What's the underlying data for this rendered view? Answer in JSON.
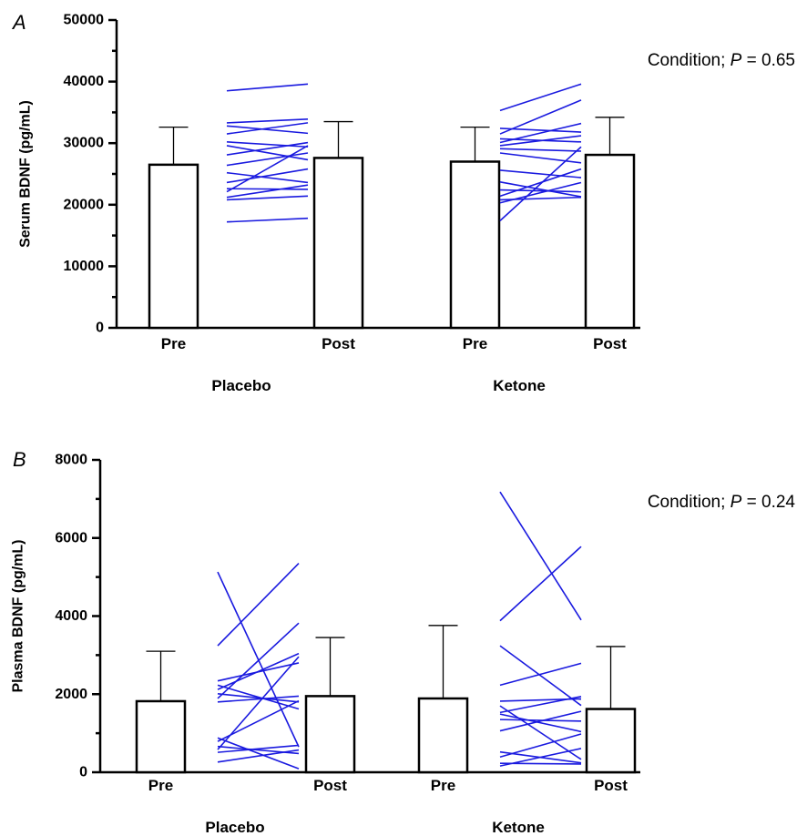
{
  "chart_data": [
    {
      "type": "bar",
      "panel": "A",
      "ylabel": "Serum BDNF (pg/mL)",
      "ylim": [
        0,
        50000
      ],
      "yticks": [
        0,
        10000,
        20000,
        30000,
        40000,
        50000
      ],
      "categories": [
        "Pre",
        "Post",
        "Pre",
        "Post"
      ],
      "groups": [
        "Placebo",
        "Ketone"
      ],
      "values": [
        26500,
        27600,
        27000,
        28100
      ],
      "errors_upper": [
        32600,
        33500,
        32600,
        34200
      ],
      "annotation": {
        "prefix": "Condition; ",
        "p": "P",
        "suffix": " = 0.65"
      },
      "individual_lines": [
        {
          "group": "Placebo",
          "pairs": [
            [
              38500,
              39600
            ],
            [
              33300,
              33900
            ],
            [
              32800,
              31600
            ],
            [
              31500,
              33300
            ],
            [
              30200,
              29400
            ],
            [
              29600,
              27300
            ],
            [
              28100,
              30100
            ],
            [
              26400,
              28400
            ],
            [
              25200,
              23600
            ],
            [
              23600,
              25800
            ],
            [
              22600,
              22500
            ],
            [
              22100,
              29600
            ],
            [
              21200,
              23200
            ],
            [
              20800,
              21400
            ],
            [
              17200,
              17800
            ]
          ]
        },
        {
          "group": "Ketone",
          "pairs": [
            [
              35300,
              39600
            ],
            [
              32400,
              31800
            ],
            [
              31500,
              37000
            ],
            [
              30700,
              30200
            ],
            [
              30100,
              33200
            ],
            [
              29600,
              31200
            ],
            [
              29100,
              28700
            ],
            [
              28400,
              26800
            ],
            [
              25600,
              24400
            ],
            [
              23700,
              21300
            ],
            [
              22400,
              22100
            ],
            [
              21400,
              25800
            ],
            [
              20800,
              21200
            ],
            [
              20300,
              23600
            ],
            [
              17400,
              29400
            ]
          ]
        }
      ]
    },
    {
      "type": "bar",
      "panel": "B",
      "ylabel": "Plasma BDNF (pg/mL)",
      "ylim": [
        0,
        8000
      ],
      "yticks": [
        0,
        2000,
        4000,
        6000,
        8000
      ],
      "categories": [
        "Pre",
        "Post",
        "Pre",
        "Post"
      ],
      "groups": [
        "Placebo",
        "Ketone"
      ],
      "values": [
        1820,
        1950,
        1890,
        1620
      ],
      "errors_upper": [
        3100,
        3450,
        3760,
        3220
      ],
      "annotation": {
        "prefix": "Condition; ",
        "p": "P",
        "suffix": " = 0.24"
      },
      "individual_lines": [
        {
          "group": "Placebo",
          "pairs": [
            [
              5130,
              650
            ],
            [
              3240,
              5350
            ],
            [
              2340,
              2800
            ],
            [
              2230,
              1620
            ],
            [
              2120,
              3040
            ],
            [
              2010,
              1800
            ],
            [
              1890,
              3820
            ],
            [
              1800,
              1950
            ],
            [
              880,
              90
            ],
            [
              790,
              1830
            ],
            [
              660,
              480
            ],
            [
              580,
              2960
            ],
            [
              510,
              690
            ],
            [
              260,
              570
            ]
          ]
        },
        {
          "group": "Ketone",
          "pairs": [
            [
              7180,
              3900
            ],
            [
              3880,
              5780
            ],
            [
              3240,
              1710
            ],
            [
              2230,
              2790
            ],
            [
              1820,
              1880
            ],
            [
              1700,
              330
            ],
            [
              1530,
              1940
            ],
            [
              1490,
              1040
            ],
            [
              1350,
              1310
            ],
            [
              1060,
              1560
            ],
            [
              520,
              240
            ],
            [
              390,
              980
            ],
            [
              230,
              210
            ],
            [
              160,
              610
            ]
          ]
        }
      ]
    }
  ]
}
